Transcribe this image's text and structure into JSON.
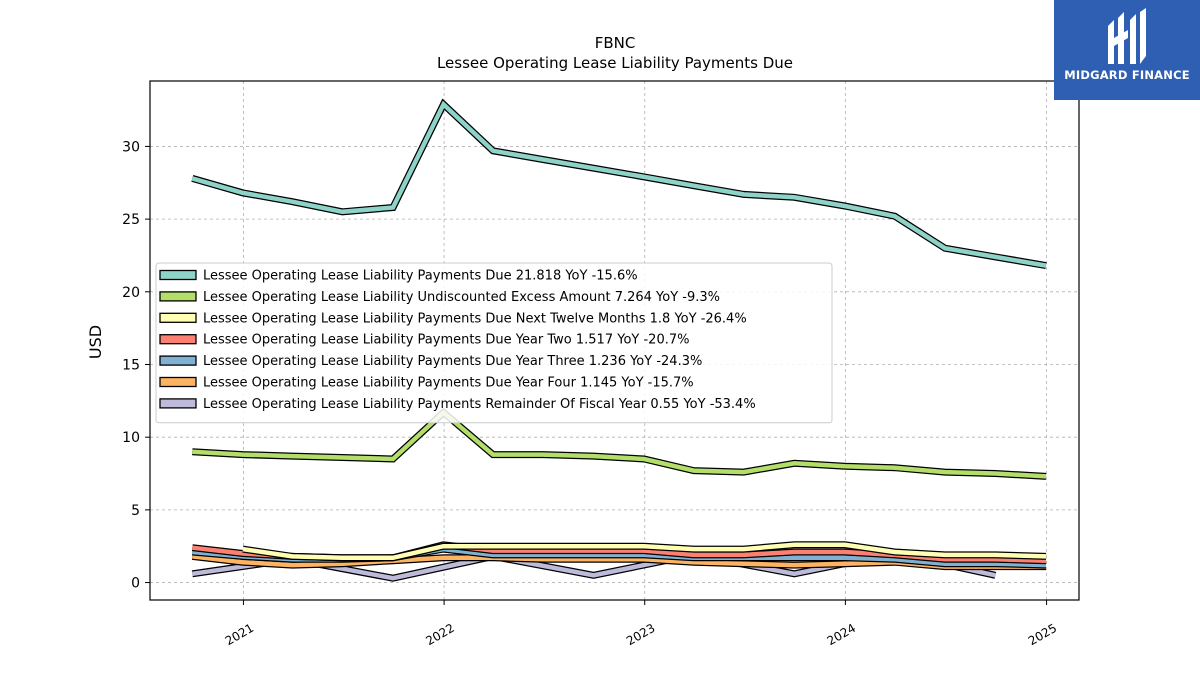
{
  "brand": {
    "name": "MIDGARD FINANCE",
    "color": "#2f5fb3"
  },
  "chart_data": {
    "type": "line",
    "title": "FBNC",
    "subtitle": "Lessee Operating Lease Liability Payments Due",
    "ylabel": "USD",
    "xlabel": "",
    "ylim": [
      -1.2,
      34.5
    ],
    "xlim": [
      "2020-07-15",
      "2025-03-01"
    ],
    "yticks": [
      0,
      5,
      10,
      15,
      20,
      25,
      30
    ],
    "xticks": [
      "2021",
      "2022",
      "2023",
      "2024",
      "2025"
    ],
    "grid": true,
    "legend_position": "center-left",
    "series": [
      {
        "name": "Lessee Operating Lease Liability Payments Due",
        "legend_label": "Lessee Operating Lease Liability Payments Due  21.818 YoY -15.6%",
        "color": "#8dd3c7",
        "points": [
          [
            "2020-09-30",
            27.8
          ],
          [
            "2020-12-31",
            26.8
          ],
          [
            "2021-03-31",
            26.2
          ],
          [
            "2021-06-30",
            25.5
          ],
          [
            "2021-09-30",
            25.8
          ],
          [
            "2021-12-31",
            32.9
          ],
          [
            "2022-03-31",
            29.7
          ],
          [
            "2022-06-30",
            29.1
          ],
          [
            "2022-09-30",
            28.5
          ],
          [
            "2022-12-31",
            27.9
          ],
          [
            "2023-03-31",
            27.3
          ],
          [
            "2023-06-30",
            26.7
          ],
          [
            "2023-09-30",
            26.5
          ],
          [
            "2023-12-31",
            25.9
          ],
          [
            "2024-03-31",
            25.2
          ],
          [
            "2024-06-30",
            23.0
          ],
          [
            "2024-09-30",
            22.4
          ],
          [
            "2024-12-31",
            21.8
          ]
        ]
      },
      {
        "name": "Lessee Operating Lease Liability Undiscounted Excess Amount",
        "legend_label": "Lessee Operating Lease Liability Undiscounted Excess Amount  7.264 YoY -9.3%",
        "color": "#b3de69",
        "points": [
          [
            "2020-09-30",
            9.0
          ],
          [
            "2020-12-31",
            8.8
          ],
          [
            "2021-03-31",
            8.7
          ],
          [
            "2021-06-30",
            8.6
          ],
          [
            "2021-09-30",
            8.5
          ],
          [
            "2021-12-31",
            11.7
          ],
          [
            "2022-03-31",
            8.8
          ],
          [
            "2022-06-30",
            8.8
          ],
          [
            "2022-09-30",
            8.7
          ],
          [
            "2022-12-31",
            8.5
          ],
          [
            "2023-03-31",
            7.7
          ],
          [
            "2023-06-30",
            7.6
          ],
          [
            "2023-09-30",
            8.2
          ],
          [
            "2023-12-31",
            8.0
          ],
          [
            "2024-03-31",
            7.9
          ],
          [
            "2024-06-30",
            7.6
          ],
          [
            "2024-09-30",
            7.5
          ],
          [
            "2024-12-31",
            7.3
          ]
        ]
      },
      {
        "name": "Lessee Operating Lease Liability Payments Due Next Twelve Months",
        "legend_label": "Lessee Operating Lease Liability Payments Due Next Twelve Months  1.8 YoY -26.4%",
        "color": "#ffffb3",
        "points": [
          [
            "2020-12-31",
            2.3
          ],
          [
            "2021-03-31",
            1.8
          ],
          [
            "2021-06-30",
            1.7
          ],
          [
            "2021-09-30",
            1.7
          ],
          [
            "2021-12-31",
            2.5
          ],
          [
            "2022-03-31",
            2.5
          ],
          [
            "2022-06-30",
            2.5
          ],
          [
            "2022-09-30",
            2.5
          ],
          [
            "2022-12-31",
            2.5
          ],
          [
            "2023-03-31",
            2.3
          ],
          [
            "2023-06-30",
            2.3
          ],
          [
            "2023-09-30",
            2.6
          ],
          [
            "2023-12-31",
            2.6
          ],
          [
            "2024-03-31",
            2.1
          ],
          [
            "2024-06-30",
            1.9
          ],
          [
            "2024-09-30",
            1.9
          ],
          [
            "2024-12-31",
            1.8
          ]
        ]
      },
      {
        "name": "Lessee Operating Lease Liability Payments Due Year Two",
        "legend_label": "Lessee Operating Lease Liability Payments Due Year Two  1.517 YoY -20.7%",
        "color": "#fb8072",
        "points": [
          [
            "2020-09-30",
            2.4
          ],
          [
            "2020-12-31",
            2.0
          ],
          [
            "2021-03-31",
            1.8
          ],
          [
            "2021-06-30",
            1.7
          ],
          [
            "2021-09-30",
            1.7
          ],
          [
            "2021-12-31",
            2.6
          ],
          [
            "2022-03-31",
            2.2
          ],
          [
            "2022-06-30",
            2.2
          ],
          [
            "2022-09-30",
            2.2
          ],
          [
            "2022-12-31",
            2.2
          ],
          [
            "2023-03-31",
            1.9
          ],
          [
            "2023-06-30",
            1.9
          ],
          [
            "2023-09-30",
            2.1
          ],
          [
            "2023-12-31",
            2.1
          ],
          [
            "2024-03-31",
            1.9
          ],
          [
            "2024-06-30",
            1.6
          ],
          [
            "2024-09-30",
            1.6
          ],
          [
            "2024-12-31",
            1.5
          ]
        ]
      },
      {
        "name": "Lessee Operating Lease Liability Payments Due Year Three",
        "legend_label": "Lessee Operating Lease Liability Payments Due Year Three  1.236 YoY -24.3%",
        "color": "#80b1d3",
        "points": [
          [
            "2020-09-30",
            2.1
          ],
          [
            "2020-12-31",
            1.8
          ],
          [
            "2021-03-31",
            1.6
          ],
          [
            "2021-06-30",
            1.6
          ],
          [
            "2021-09-30",
            1.7
          ],
          [
            "2021-12-31",
            2.3
          ],
          [
            "2022-03-31",
            1.9
          ],
          [
            "2022-06-30",
            1.9
          ],
          [
            "2022-09-30",
            1.9
          ],
          [
            "2022-12-31",
            1.9
          ],
          [
            "2023-03-31",
            1.7
          ],
          [
            "2023-06-30",
            1.7
          ],
          [
            "2023-09-30",
            1.7
          ],
          [
            "2023-12-31",
            1.7
          ],
          [
            "2024-03-31",
            1.6
          ],
          [
            "2024-06-30",
            1.3
          ],
          [
            "2024-09-30",
            1.3
          ],
          [
            "2024-12-31",
            1.2
          ]
        ]
      },
      {
        "name": "Lessee Operating Lease Liability Payments Due Year Four",
        "legend_label": "Lessee Operating Lease Liability Payments Due Year Four  1.145 YoY -15.7%",
        "color": "#fdb462",
        "points": [
          [
            "2020-09-30",
            1.8
          ],
          [
            "2020-12-31",
            1.4
          ],
          [
            "2021-03-31",
            1.2
          ],
          [
            "2021-06-30",
            1.3
          ],
          [
            "2021-09-30",
            1.5
          ],
          [
            "2021-12-31",
            1.7
          ],
          [
            "2022-03-31",
            1.7
          ],
          [
            "2022-06-30",
            1.6
          ],
          [
            "2022-09-30",
            1.6
          ],
          [
            "2022-12-31",
            1.6
          ],
          [
            "2023-03-31",
            1.4
          ],
          [
            "2023-06-30",
            1.3
          ],
          [
            "2023-09-30",
            1.2
          ],
          [
            "2023-12-31",
            1.3
          ],
          [
            "2024-03-31",
            1.4
          ],
          [
            "2024-06-30",
            1.1
          ],
          [
            "2024-09-30",
            1.1
          ],
          [
            "2024-12-31",
            1.1
          ]
        ]
      },
      {
        "name": "Lessee Operating Lease Liability Payments Remainder Of Fiscal Year",
        "legend_label": "Lessee Operating Lease Liability Payments Remainder Of Fiscal Year  0.55 YoY -53.4%",
        "color": "#bebada",
        "points": [
          [
            "2020-09-30",
            0.6
          ],
          [
            "2021-03-31",
            1.6
          ],
          [
            "2021-09-30",
            0.3
          ],
          [
            "2022-03-31",
            1.8
          ],
          [
            "2022-09-30",
            0.5
          ],
          [
            "2023-03-31",
            1.9
          ],
          [
            "2023-09-30",
            0.6
          ],
          [
            "2024-03-31",
            2.0
          ],
          [
            "2024-09-30",
            0.5
          ]
        ]
      }
    ]
  }
}
